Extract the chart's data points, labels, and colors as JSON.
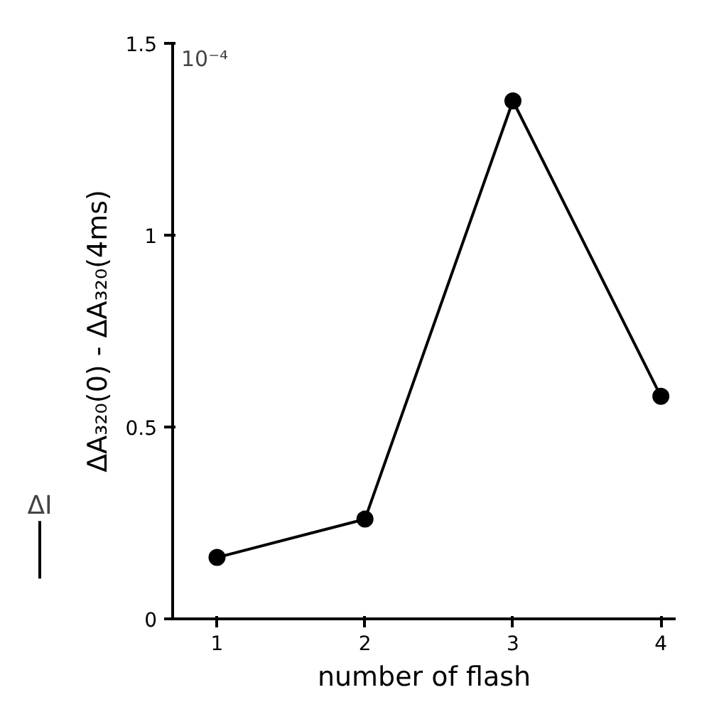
{
  "chart_data": {
    "type": "line",
    "xlabel": "number of flash",
    "ylabel": "ΔA₃₂₀(0) - ΔA₃₂₀(4ms)",
    "x": [
      1,
      2,
      3,
      4
    ],
    "series": [
      {
        "color": "#000000",
        "values": [
          0.16,
          0.26,
          1.35,
          0.58
        ]
      }
    ],
    "xlim": [
      0.7,
      4.1
    ],
    "ylim": [
      0,
      1.5
    ],
    "xticks": [
      1,
      2,
      3,
      4
    ],
    "yticks": [
      0,
      0.5,
      1,
      1.5
    ],
    "annotations": [
      "10⁻⁴",
      "ΔI"
    ],
    "marker": "circle",
    "line_style": "solid",
    "grid": false
  }
}
